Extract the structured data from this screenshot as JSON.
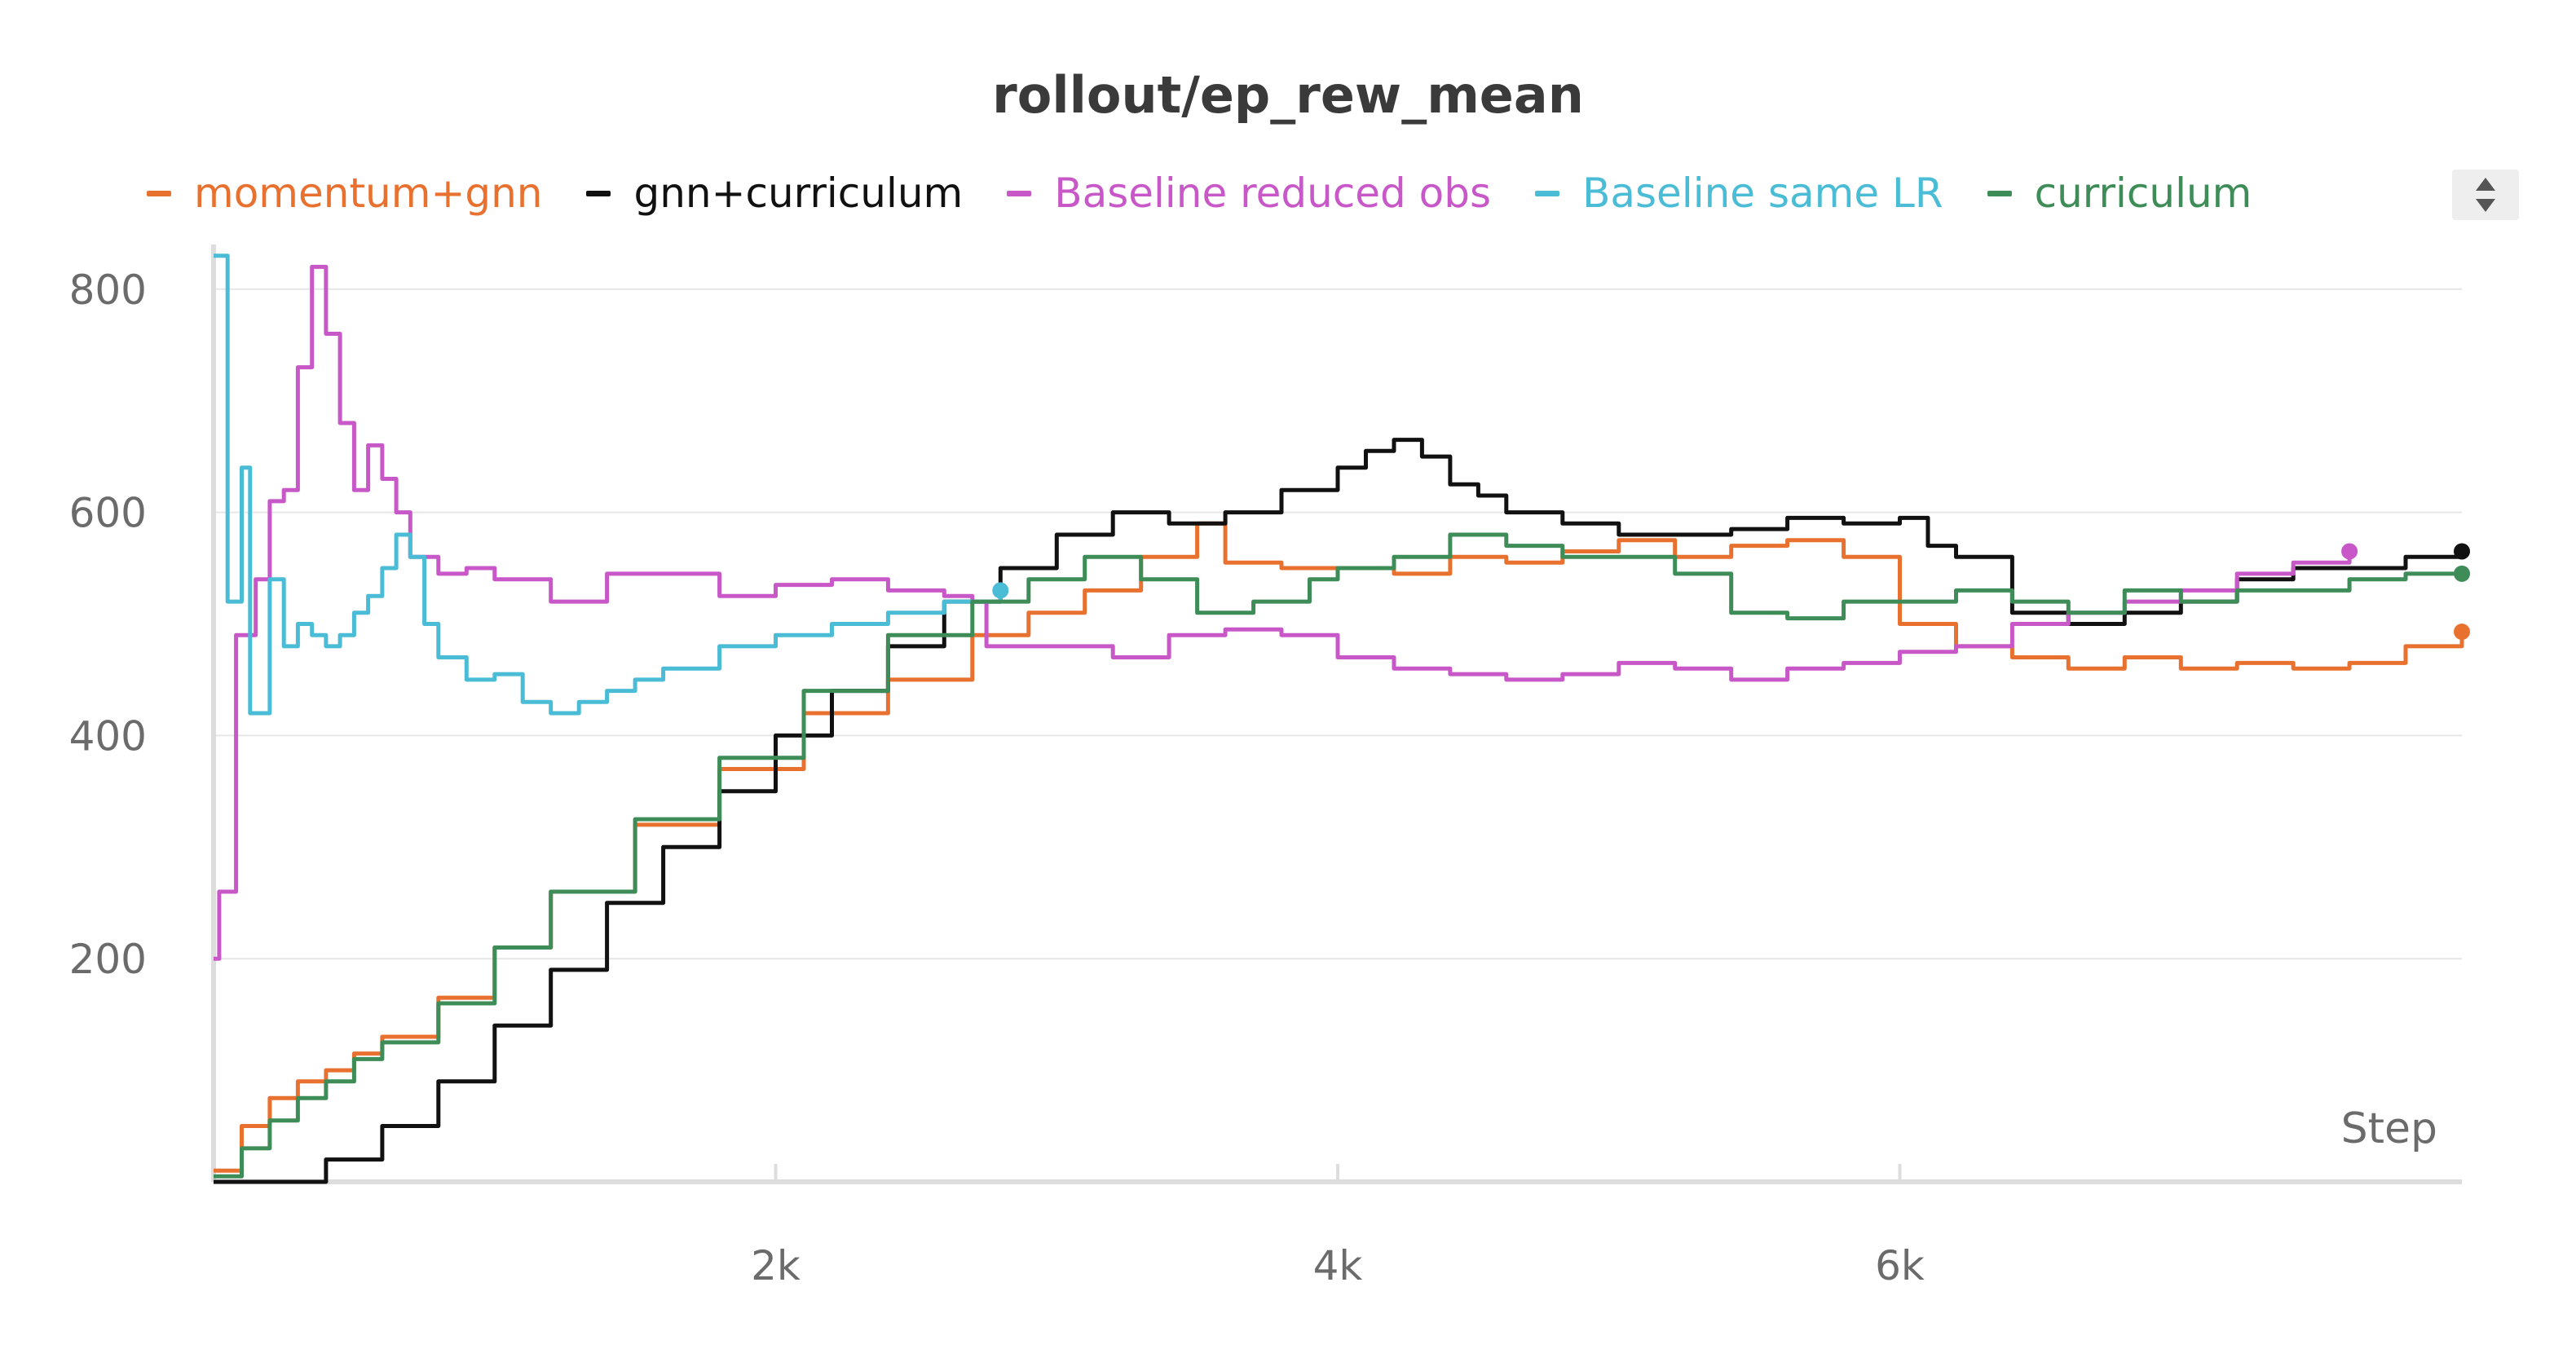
{
  "chart_data": {
    "type": "line",
    "title": "rollout/ep_rew_mean",
    "xlabel": "Step",
    "ylabel": "",
    "xlim": [
      0,
      8000
    ],
    "ylim": [
      0,
      840
    ],
    "x_ticks": [
      2000,
      4000,
      6000
    ],
    "x_tick_labels": [
      "2k",
      "4k",
      "6k"
    ],
    "y_ticks": [
      200,
      400,
      600,
      800
    ],
    "y_tick_labels": [
      "200",
      "400",
      "600",
      "800"
    ],
    "grid": true,
    "legend_position": "top",
    "series": [
      {
        "name": "momentum+gnn",
        "color": "#e8712f",
        "end_marker": true,
        "x": [
          0,
          100,
          200,
          300,
          400,
          500,
          600,
          800,
          1000,
          1200,
          1500,
          1800,
          2100,
          2400,
          2700,
          2900,
          3100,
          3300,
          3500,
          3600,
          3800,
          4000,
          4200,
          4400,
          4600,
          4800,
          5000,
          5200,
          5400,
          5600,
          5800,
          6000,
          6200,
          6400,
          6600,
          6800,
          7000,
          7200,
          7400,
          7600,
          7800,
          8000
        ],
        "y": [
          10,
          50,
          75,
          90,
          100,
          115,
          130,
          165,
          210,
          260,
          320,
          370,
          420,
          450,
          490,
          510,
          530,
          560,
          590,
          555,
          550,
          550,
          545,
          560,
          555,
          565,
          575,
          560,
          570,
          575,
          560,
          500,
          480,
          470,
          460,
          470,
          460,
          465,
          460,
          465,
          480,
          493
        ]
      },
      {
        "name": "gnn+curriculum",
        "color": "#111111",
        "end_marker": true,
        "x": [
          0,
          200,
          400,
          600,
          800,
          1000,
          1200,
          1400,
          1600,
          1800,
          2000,
          2200,
          2400,
          2600,
          2800,
          3000,
          3200,
          3400,
          3600,
          3800,
          4000,
          4100,
          4200,
          4300,
          4400,
          4500,
          4600,
          4800,
          5000,
          5200,
          5400,
          5600,
          5800,
          6000,
          6100,
          6200,
          6400,
          6600,
          6800,
          7000,
          7200,
          7400,
          7600,
          7800,
          8000
        ],
        "y": [
          0,
          0,
          20,
          50,
          90,
          140,
          190,
          250,
          300,
          350,
          400,
          440,
          480,
          520,
          550,
          580,
          600,
          590,
          600,
          620,
          640,
          655,
          665,
          650,
          625,
          615,
          600,
          590,
          580,
          580,
          585,
          595,
          590,
          595,
          570,
          560,
          510,
          500,
          510,
          520,
          540,
          550,
          550,
          560,
          565
        ]
      },
      {
        "name": "Baseline reduced obs",
        "color": "#c858c8",
        "end_marker": true,
        "x": [
          0,
          20,
          50,
          80,
          100,
          150,
          200,
          250,
          300,
          350,
          400,
          450,
          500,
          550,
          600,
          650,
          700,
          800,
          900,
          1000,
          1200,
          1400,
          1600,
          1800,
          2000,
          2200,
          2400,
          2600,
          2700,
          2750,
          2800,
          3000,
          3200,
          3400,
          3600,
          3800,
          4000,
          4200,
          4400,
          4600,
          4800,
          5000,
          5200,
          5400,
          5600,
          5800,
          6000,
          6200,
          6400,
          6600,
          6800,
          7000,
          7200,
          7400,
          7600
        ],
        "y": [
          200,
          260,
          260,
          490,
          490,
          540,
          610,
          620,
          730,
          820,
          760,
          680,
          620,
          660,
          630,
          600,
          560,
          545,
          550,
          540,
          520,
          545,
          545,
          525,
          535,
          540,
          530,
          525,
          520,
          480,
          480,
          480,
          470,
          490,
          495,
          490,
          470,
          460,
          455,
          450,
          455,
          465,
          460,
          450,
          460,
          465,
          475,
          480,
          500,
          510,
          520,
          530,
          545,
          555,
          565
        ]
      },
      {
        "name": "Baseline same LR",
        "color": "#4bbcd6",
        "end_marker": true,
        "x": [
          0,
          25,
          50,
          75,
          100,
          130,
          160,
          200,
          250,
          300,
          350,
          400,
          450,
          500,
          550,
          600,
          650,
          700,
          750,
          800,
          900,
          1000,
          1100,
          1200,
          1300,
          1400,
          1500,
          1600,
          1800,
          2000,
          2200,
          2400,
          2600,
          2800
        ],
        "y": [
          830,
          830,
          520,
          520,
          640,
          420,
          420,
          540,
          480,
          500,
          490,
          480,
          490,
          510,
          525,
          550,
          580,
          560,
          500,
          470,
          450,
          455,
          430,
          420,
          430,
          440,
          450,
          460,
          480,
          490,
          500,
          510,
          520,
          530
        ]
      },
      {
        "name": "curriculum",
        "color": "#3e8c57",
        "end_marker": true,
        "x": [
          0,
          100,
          200,
          300,
          400,
          500,
          600,
          800,
          1000,
          1200,
          1500,
          1800,
          2100,
          2400,
          2700,
          2900,
          3100,
          3300,
          3500,
          3700,
          3900,
          4000,
          4200,
          4400,
          4600,
          4800,
          5000,
          5200,
          5400,
          5600,
          5800,
          6000,
          6200,
          6400,
          6600,
          6800,
          7000,
          7200,
          7400,
          7600,
          7800,
          8000
        ],
        "y": [
          5,
          30,
          55,
          75,
          90,
          110,
          125,
          160,
          210,
          260,
          325,
          380,
          440,
          490,
          520,
          540,
          560,
          540,
          510,
          520,
          540,
          550,
          560,
          580,
          570,
          560,
          560,
          545,
          510,
          505,
          520,
          520,
          530,
          520,
          510,
          530,
          520,
          530,
          530,
          540,
          545,
          545
        ]
      }
    ]
  }
}
